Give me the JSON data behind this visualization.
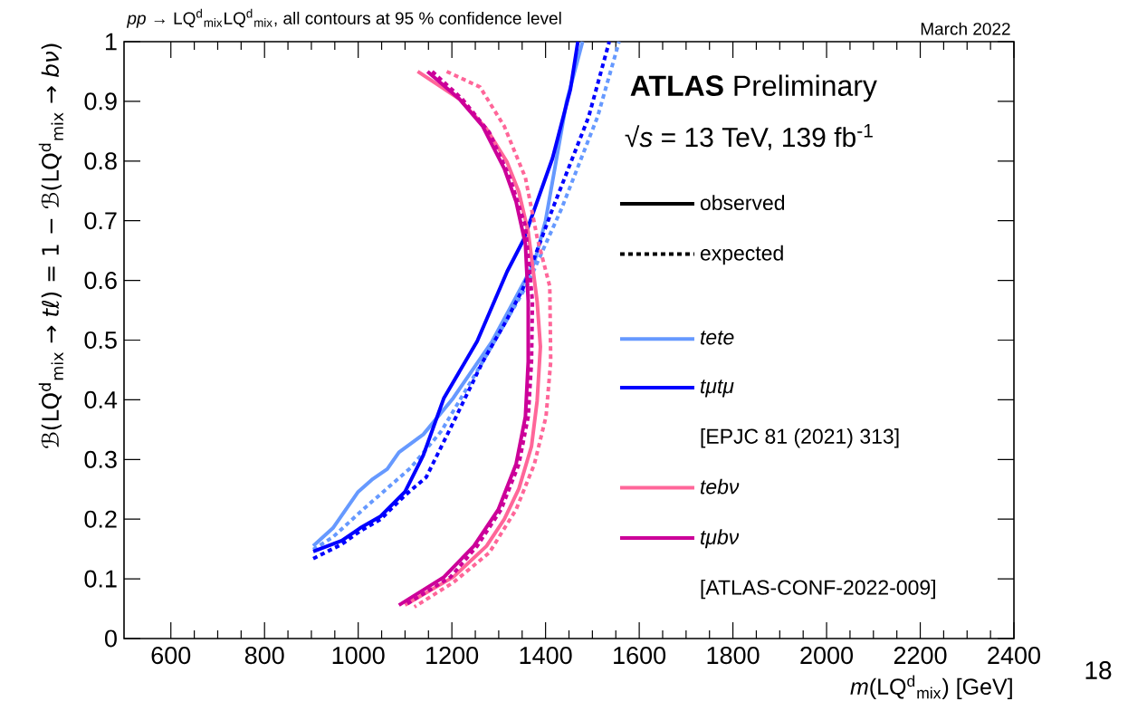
{
  "chart_data": {
    "type": "line",
    "title": "*pp* → LQ$^{d}$$_{mix}$LQ$^{d}$$_{mix}$, all contours at 95 % confidence level",
    "xlabel": "*m*(LQ$^{d}$$_{mix}$) [GeV]",
    "ylabel": "ℬ(LQ$^{d}$$_{mix}$ → *tℓ*) = 1 − ℬ(LQ$^{d}$$_{mix}$ → *bν*)",
    "annotations": [
      "March 2022",
      "**ATLAS** Preliminary",
      "√*s* = 13 TeV, 139 fb$^{-1}$",
      "observed",
      "expected",
      "[EPJC 81 (2021) 313]",
      "[ATLAS-CONF-2022-009]",
      "18"
    ],
    "xlim": [
      500,
      2400
    ],
    "ylim": [
      0,
      1
    ],
    "xticks": [
      600,
      800,
      1000,
      1200,
      1400,
      1600,
      1800,
      2000,
      2200,
      2400
    ],
    "yticks": [
      0,
      0.1,
      0.2,
      0.3,
      0.4,
      0.5,
      0.6,
      0.7,
      0.8,
      0.9,
      1
    ],
    "legend": "right",
    "marker": "none",
    "grid": false,
    "series": [
      {
        "name": "tete",
        "color": "#6699ff",
        "line_style": "solid",
        "x": [
          904,
          946,
          1000,
          1029,
          1062,
          1087,
          1139,
          1203,
          1286,
          1332,
          1376,
          1400,
          1445,
          1479
        ],
        "values": [
          0.155,
          0.185,
          0.246,
          0.266,
          0.284,
          0.312,
          0.342,
          0.403,
          0.498,
          0.565,
          0.63,
          0.7,
          0.9,
          1.0
        ]
      },
      {
        "color": "#6699ff",
        "line_style": "dotted",
        "x": [
          904,
          946,
          1010,
          1112,
          1177,
          1266,
          1363,
          1434,
          1511,
          1557
        ],
        "values": [
          0.149,
          0.17,
          0.216,
          0.286,
          0.347,
          0.464,
          0.596,
          0.72,
          0.874,
          1.0
        ]
      },
      {
        "name": "tμtμ",
        "color": "#0000ff",
        "line_style": "solid",
        "x": [
          904,
          965,
          1004,
          1048,
          1100,
          1139,
          1183,
          1254,
          1318,
          1353,
          1415,
          1453,
          1469
        ],
        "values": [
          0.146,
          0.164,
          0.185,
          0.205,
          0.246,
          0.307,
          0.403,
          0.498,
          0.615,
          0.668,
          0.805,
          0.92,
          1.0
        ]
      },
      {
        "color": "#0000ff",
        "line_style": "dotted",
        "x": [
          904,
          965,
          1004,
          1048,
          1100,
          1145,
          1203,
          1266,
          1318,
          1351,
          1415,
          1492,
          1536
        ],
        "values": [
          0.134,
          0.158,
          0.18,
          0.2,
          0.24,
          0.27,
          0.362,
          0.464,
          0.535,
          0.585,
          0.72,
          0.874,
          1.0
        ]
      },
      {
        "name": "tebν",
        "color": "#ff6699",
        "line_style": "solid",
        "x": [
          1127,
          1216,
          1274,
          1318,
          1343,
          1363,
          1382,
          1389,
          1382,
          1370,
          1343,
          1312,
          1274,
          1203,
          1100
        ],
        "values": [
          0.95,
          0.904,
          0.854,
          0.798,
          0.748,
          0.681,
          0.565,
          0.489,
          0.398,
          0.322,
          0.251,
          0.2,
          0.155,
          0.103,
          0.056
        ]
      },
      {
        "color": "#ff6699",
        "line_style": "dotted",
        "x": [
          1189,
          1260,
          1312,
          1357,
          1382,
          1409,
          1411,
          1401,
          1376,
          1337,
          1280,
          1203,
          1120
        ],
        "values": [
          0.95,
          0.924,
          0.858,
          0.772,
          0.672,
          0.59,
          0.464,
          0.372,
          0.292,
          0.216,
          0.144,
          0.094,
          0.053
        ]
      },
      {
        "name": "tμbν",
        "color": "#cc0099",
        "line_style": "solid",
        "x": [
          1148,
          1216,
          1266,
          1312,
          1337,
          1357,
          1363,
          1363,
          1357,
          1337,
          1299,
          1247,
          1183,
          1087
        ],
        "values": [
          0.95,
          0.904,
          0.858,
          0.787,
          0.732,
          0.661,
          0.565,
          0.464,
          0.372,
          0.292,
          0.216,
          0.155,
          0.103,
          0.056
        ]
      },
      {
        "color": "#cc0099",
        "line_style": "dotted",
        "x": [
          1158,
          1222,
          1280,
          1324,
          1357,
          1372,
          1370,
          1363,
          1343,
          1305,
          1254,
          1197,
          1100
        ],
        "values": [
          0.95,
          0.904,
          0.848,
          0.772,
          0.691,
          0.565,
          0.464,
          0.372,
          0.292,
          0.216,
          0.155,
          0.103,
          0.056
        ]
      }
    ]
  }
}
